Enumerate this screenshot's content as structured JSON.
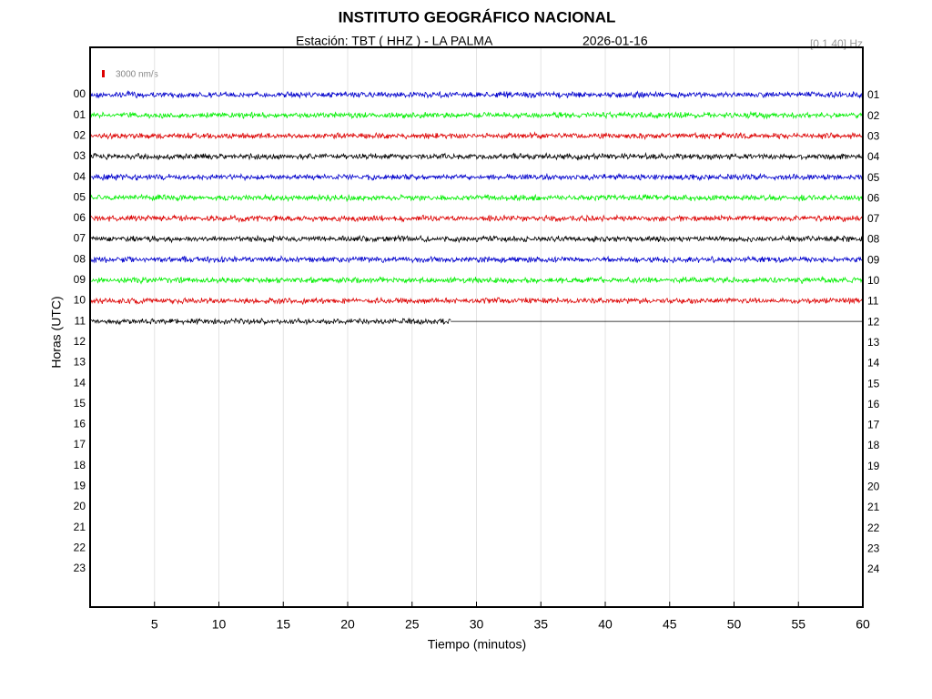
{
  "chart_data": {
    "type": "helicorder",
    "title": "INSTITUTO GEOGRÁFICO NACIONAL",
    "subtitle": "Estación:  TBT ( HHZ ) - LA PALMA",
    "date": "2026-01-16",
    "filter": "[0.1 40] Hz",
    "scale_label": "3000 nm/s",
    "scale_color": "#dd0000",
    "x_label": "Tiempo (minutos)",
    "y_label": "Horas (UTC)",
    "xlim": [
      0,
      60
    ],
    "xticks": [
      5,
      10,
      15,
      20,
      25,
      30,
      35,
      40,
      45,
      50,
      55,
      60
    ],
    "grid": true,
    "categories": [
      "00",
      "01",
      "02",
      "03",
      "04",
      "05",
      "06",
      "07",
      "08",
      "09",
      "10",
      "11",
      "12",
      "13",
      "14",
      "15",
      "16",
      "17",
      "18",
      "19",
      "20",
      "21",
      "22",
      "23"
    ],
    "right_labels": [
      "01",
      "02",
      "03",
      "04",
      "05",
      "06",
      "07",
      "08",
      "09",
      "10",
      "11",
      "12",
      "13",
      "14",
      "15",
      "16",
      "17",
      "18",
      "19",
      "20",
      "21",
      "22",
      "23",
      "24"
    ],
    "series": [
      {
        "color": "#0000cc",
        "x": [
          0,
          60
        ]
      },
      {
        "color": "#00ee00",
        "x": [
          0,
          60
        ]
      },
      {
        "color": "#dd0000",
        "x": [
          0,
          60
        ]
      },
      {
        "color": "#000000",
        "x": [
          0,
          60
        ]
      },
      {
        "color": "#0000cc",
        "x": [
          0,
          60
        ]
      },
      {
        "color": "#00ee00",
        "x": [
          0,
          60
        ]
      },
      {
        "color": "#dd0000",
        "x": [
          0,
          60
        ]
      },
      {
        "color": "#000000",
        "x": [
          0,
          60
        ]
      },
      {
        "color": "#0000cc",
        "x": [
          0,
          60
        ]
      },
      {
        "color": "#00ee00",
        "x": [
          0,
          60
        ]
      },
      {
        "color": "#dd0000",
        "x": [
          0,
          60
        ]
      },
      {
        "color": "#000000",
        "x": [
          0,
          28
        ]
      }
    ]
  }
}
